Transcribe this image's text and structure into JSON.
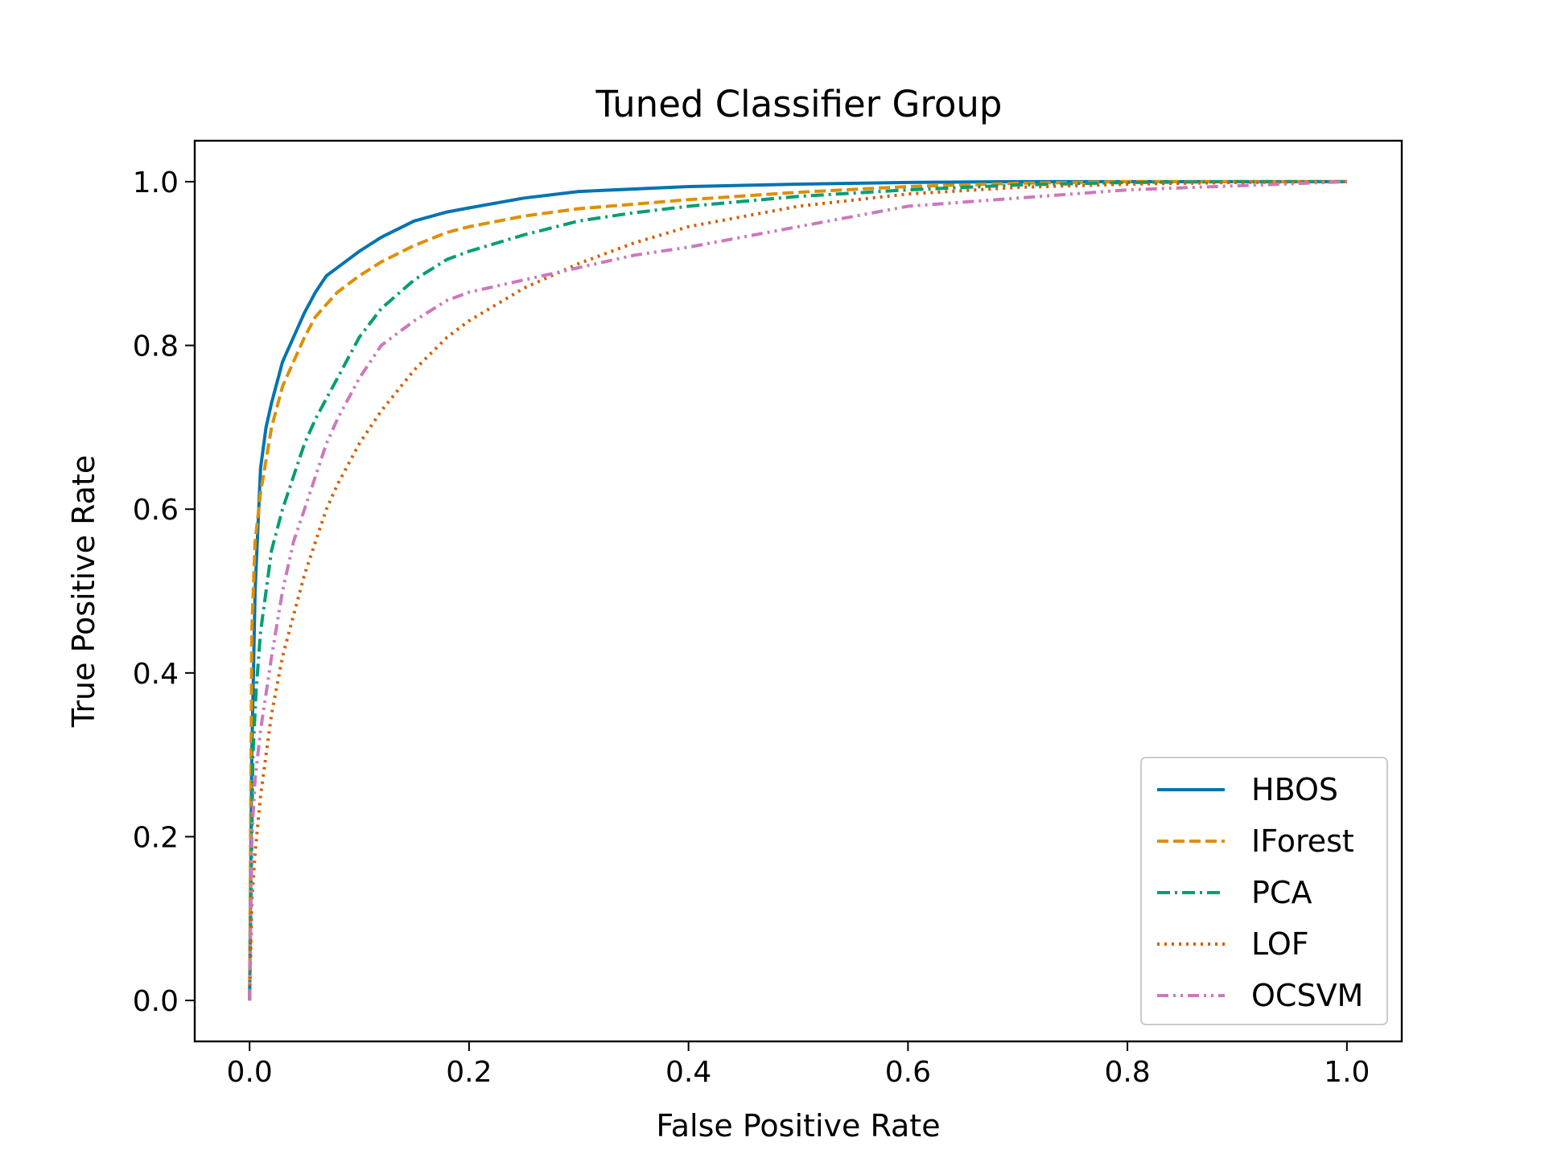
{
  "chart_data": {
    "type": "line",
    "title": "Tuned Classifier Group",
    "xlabel": "False Positive Rate",
    "ylabel": "True Positive Rate",
    "xlim": [
      -0.05,
      1.05
    ],
    "ylim": [
      -0.05,
      1.05
    ],
    "xticks": [
      0.0,
      0.2,
      0.4,
      0.6,
      0.8,
      1.0
    ],
    "yticks": [
      0.0,
      0.2,
      0.4,
      0.6,
      0.8,
      1.0
    ],
    "tick_labels": [
      "0.0",
      "0.2",
      "0.4",
      "0.6",
      "0.8",
      "1.0"
    ],
    "grid": false,
    "legend_position": "lower right",
    "series": [
      {
        "name": "HBOS",
        "color": "#0173b2",
        "style": "solid",
        "x": [
          0.0,
          0.002,
          0.005,
          0.01,
          0.015,
          0.02,
          0.03,
          0.04,
          0.05,
          0.06,
          0.07,
          0.08,
          0.1,
          0.12,
          0.15,
          0.18,
          0.2,
          0.25,
          0.3,
          0.4,
          0.5,
          0.6,
          0.7,
          0.8,
          0.9,
          1.0
        ],
        "y": [
          0.0,
          0.3,
          0.5,
          0.65,
          0.7,
          0.73,
          0.78,
          0.81,
          0.84,
          0.865,
          0.885,
          0.895,
          0.915,
          0.932,
          0.952,
          0.963,
          0.968,
          0.98,
          0.988,
          0.994,
          0.997,
          0.999,
          1.0,
          1.0,
          1.0,
          1.0
        ]
      },
      {
        "name": "IForest",
        "color": "#de8f05",
        "style": "dashed",
        "x": [
          0.0,
          0.002,
          0.005,
          0.01,
          0.02,
          0.03,
          0.04,
          0.05,
          0.06,
          0.07,
          0.08,
          0.1,
          0.12,
          0.15,
          0.18,
          0.2,
          0.25,
          0.3,
          0.4,
          0.5,
          0.6,
          0.7,
          0.8,
          0.9,
          1.0
        ],
        "y": [
          0.0,
          0.45,
          0.56,
          0.62,
          0.7,
          0.75,
          0.78,
          0.81,
          0.835,
          0.85,
          0.865,
          0.885,
          0.902,
          0.922,
          0.938,
          0.945,
          0.958,
          0.967,
          0.978,
          0.987,
          0.994,
          0.998,
          1.0,
          1.0,
          1.0
        ]
      },
      {
        "name": "PCA",
        "color": "#029e73",
        "style": "dashdot",
        "x": [
          0.0,
          0.003,
          0.006,
          0.01,
          0.02,
          0.03,
          0.04,
          0.05,
          0.06,
          0.07,
          0.08,
          0.1,
          0.12,
          0.15,
          0.18,
          0.2,
          0.25,
          0.3,
          0.35,
          0.4,
          0.5,
          0.6,
          0.7,
          0.8,
          0.9,
          1.0
        ],
        "y": [
          0.0,
          0.3,
          0.38,
          0.45,
          0.55,
          0.6,
          0.64,
          0.68,
          0.71,
          0.735,
          0.76,
          0.81,
          0.845,
          0.88,
          0.905,
          0.915,
          0.935,
          0.952,
          0.962,
          0.97,
          0.982,
          0.99,
          0.996,
          0.999,
          1.0,
          1.0
        ]
      },
      {
        "name": "LOF",
        "color": "#d55e00",
        "style": "dotted",
        "x": [
          0.0,
          0.002,
          0.005,
          0.01,
          0.02,
          0.03,
          0.04,
          0.05,
          0.06,
          0.07,
          0.08,
          0.1,
          0.12,
          0.15,
          0.18,
          0.2,
          0.25,
          0.3,
          0.35,
          0.4,
          0.5,
          0.6,
          0.7,
          0.8,
          0.9,
          1.0
        ],
        "y": [
          0.0,
          0.12,
          0.18,
          0.25,
          0.35,
          0.42,
          0.47,
          0.52,
          0.56,
          0.6,
          0.63,
          0.68,
          0.72,
          0.77,
          0.81,
          0.83,
          0.87,
          0.9,
          0.925,
          0.945,
          0.97,
          0.985,
          0.993,
          0.997,
          0.999,
          1.0
        ]
      },
      {
        "name": "OCSVM",
        "color": "#cc78bc",
        "style": "dashdotdot",
        "x": [
          0.0,
          0.002,
          0.005,
          0.01,
          0.02,
          0.03,
          0.04,
          0.05,
          0.06,
          0.07,
          0.08,
          0.1,
          0.12,
          0.15,
          0.18,
          0.2,
          0.25,
          0.3,
          0.35,
          0.4,
          0.5,
          0.6,
          0.7,
          0.8,
          0.9,
          1.0
        ],
        "y": [
          0.0,
          0.2,
          0.27,
          0.33,
          0.42,
          0.5,
          0.56,
          0.6,
          0.64,
          0.68,
          0.71,
          0.76,
          0.8,
          0.83,
          0.855,
          0.865,
          0.88,
          0.895,
          0.91,
          0.92,
          0.945,
          0.97,
          0.98,
          0.99,
          0.995,
          1.0
        ]
      }
    ]
  }
}
